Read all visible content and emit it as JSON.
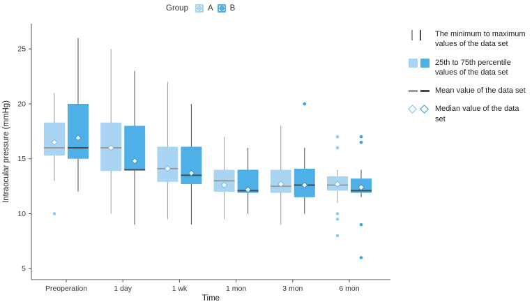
{
  "legend_group": {
    "title": "Group",
    "items": [
      {
        "label": "A",
        "color": "#a9d5f3"
      },
      {
        "label": "B",
        "color": "#4fb0e8"
      }
    ]
  },
  "legend": {
    "items": [
      {
        "icon": "minmax-lines",
        "label": "The minimum to maximum values of the data set"
      },
      {
        "icon": "percentile-boxes",
        "label": "25th to 75th percentile values of the data set"
      },
      {
        "icon": "mean-lines",
        "label": "Mean value of the data set"
      },
      {
        "icon": "median-diamonds",
        "label": "Median value of the data set"
      }
    ]
  },
  "chart_data": {
    "type": "boxplot",
    "title": "",
    "xlabel": "Time",
    "ylabel": "Intraocular pressure (mmHg)",
    "ylim": [
      4,
      27.3
    ],
    "yticks": [
      5,
      10,
      15,
      20,
      25
    ],
    "grid": false,
    "legend_position": "right",
    "categories": [
      "Preoperation",
      "1 day",
      "1 wk",
      "1 mon",
      "3 mon",
      "6 mon"
    ],
    "groups": [
      {
        "name": "A",
        "color": "#a9d5f3",
        "line_color": "#9a9a9a",
        "mean_color": "#9a9a9a",
        "diamond_color": "#7bbde8",
        "point_color": "#8ec9ee",
        "stats": [
          {
            "min": 13,
            "q1": 15.3,
            "mean": 16.0,
            "median": 16.5,
            "q3": 18.3,
            "max": 21,
            "outliers": [
              10
            ]
          },
          {
            "min": 10,
            "q1": 13.9,
            "mean": 16.0,
            "median": 16.0,
            "q3": 18.3,
            "max": 25,
            "outliers": []
          },
          {
            "min": 9.5,
            "q1": 12.9,
            "mean": 14.1,
            "median": 14.1,
            "q3": 16.1,
            "max": 22,
            "outliers": []
          },
          {
            "min": 9.5,
            "q1": 12.0,
            "mean": 13.0,
            "median": 12.6,
            "q3": 14.0,
            "max": 17,
            "outliers": []
          },
          {
            "min": 9,
            "q1": 11.9,
            "mean": 12.5,
            "median": 12.7,
            "q3": 14.0,
            "max": 18,
            "outliers": []
          },
          {
            "min": 11,
            "q1": 12.1,
            "mean": 12.6,
            "median": 12.7,
            "q3": 13.4,
            "max": 14,
            "outliers": [
              17,
              16,
              10,
              9.5,
              8
            ]
          }
        ]
      },
      {
        "name": "B",
        "color": "#4fb0e8",
        "line_color": "#4a4a4a",
        "mean_color": "#4a4a4a",
        "diamond_color": "#2f96d4",
        "point_color": "#3ba3dd",
        "stats": [
          {
            "min": 12,
            "q1": 15.0,
            "mean": 16.0,
            "median": 16.9,
            "q3": 20.0,
            "max": 26,
            "outliers": []
          },
          {
            "min": 9,
            "q1": 14.0,
            "mean": 14.0,
            "median": 14.8,
            "q3": 18.0,
            "max": 23,
            "outliers": []
          },
          {
            "min": 9,
            "q1": 12.7,
            "mean": 13.5,
            "median": 13.7,
            "q3": 16.1,
            "max": 20,
            "outliers": []
          },
          {
            "min": 10,
            "q1": 11.9,
            "mean": 12.1,
            "median": 12.2,
            "q3": 14.0,
            "max": 16,
            "outliers": []
          },
          {
            "min": 10,
            "q1": 11.5,
            "mean": 12.6,
            "median": 12.6,
            "q3": 14.1,
            "max": 16,
            "outliers": [
              20
            ]
          },
          {
            "min": 11.5,
            "q1": 11.9,
            "mean": 12.1,
            "median": 12.4,
            "q3": 13.2,
            "max": 14,
            "outliers": [
              17,
              16.5,
              9,
              6
            ]
          }
        ]
      }
    ]
  }
}
